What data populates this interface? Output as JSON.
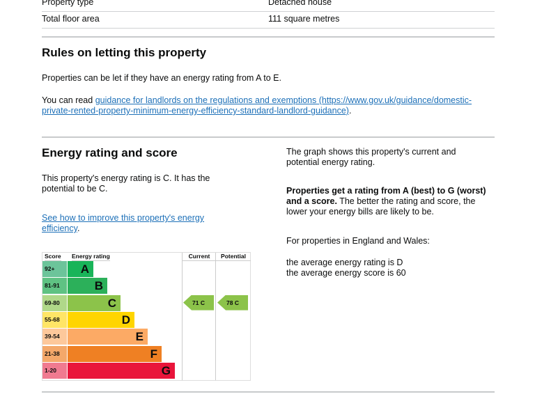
{
  "property_rows": [
    {
      "label": "Property type",
      "value": "Detached house"
    },
    {
      "label": "Total floor area",
      "value": "111 square metres"
    }
  ],
  "letting": {
    "title": "Rules on letting this property",
    "para1": "Properties can be let if they have an energy rating from A to E.",
    "para2_prefix": "You can read ",
    "link": "guidance for landlords on the regulations and exemptions (https://www.gov.uk/guidance/domestic-private-rented-property-minimum-energy-efficiency-standard-landlord-guidance)",
    "para2_suffix": "."
  },
  "energy": {
    "title": "Energy rating and score",
    "para1": "This property's energy rating is C. It has the potential to be C.",
    "link": "See how to improve this property's energy efficiency",
    "link_suffix": ".",
    "right_p1": "The graph shows this property's current and potential energy rating.",
    "right_p2_bold": "Properties get a rating from A (best) to G (worst) and a score.",
    "right_p2": " The better the rating and score, the lower your energy bills are likely to be.",
    "right_p3": "For properties in England and Wales:",
    "right_p4a": "the average energy rating is D",
    "right_p4b": "the average energy score is 60"
  },
  "chart": {
    "headers": {
      "score": "Score",
      "rating": "Energy rating",
      "current": "Current",
      "potential": "Potential"
    },
    "bands": [
      {
        "score": "92+",
        "letter": "A",
        "color": "#19b459",
        "light": "#6cc49a"
      },
      {
        "score": "81-91",
        "letter": "B",
        "color": "#2cb05a",
        "light": "#5fc283"
      },
      {
        "score": "69-80",
        "letter": "C",
        "color": "#8cc34a",
        "light": "#b0d889"
      },
      {
        "score": "55-68",
        "letter": "D",
        "color": "#ffd500",
        "light": "#ffe566"
      },
      {
        "score": "39-54",
        "letter": "E",
        "color": "#fcaa65",
        "light": "#fdc89b"
      },
      {
        "score": "21-38",
        "letter": "F",
        "color": "#ef8023",
        "light": "#f4a86a"
      },
      {
        "score": "1-20",
        "letter": "G",
        "color": "#e9153b",
        "light": "#f07a90"
      }
    ],
    "current": {
      "label": "71  C",
      "score": 71,
      "band": "C"
    },
    "potential": {
      "label": "78  C",
      "score": 78,
      "band": "C"
    }
  }
}
